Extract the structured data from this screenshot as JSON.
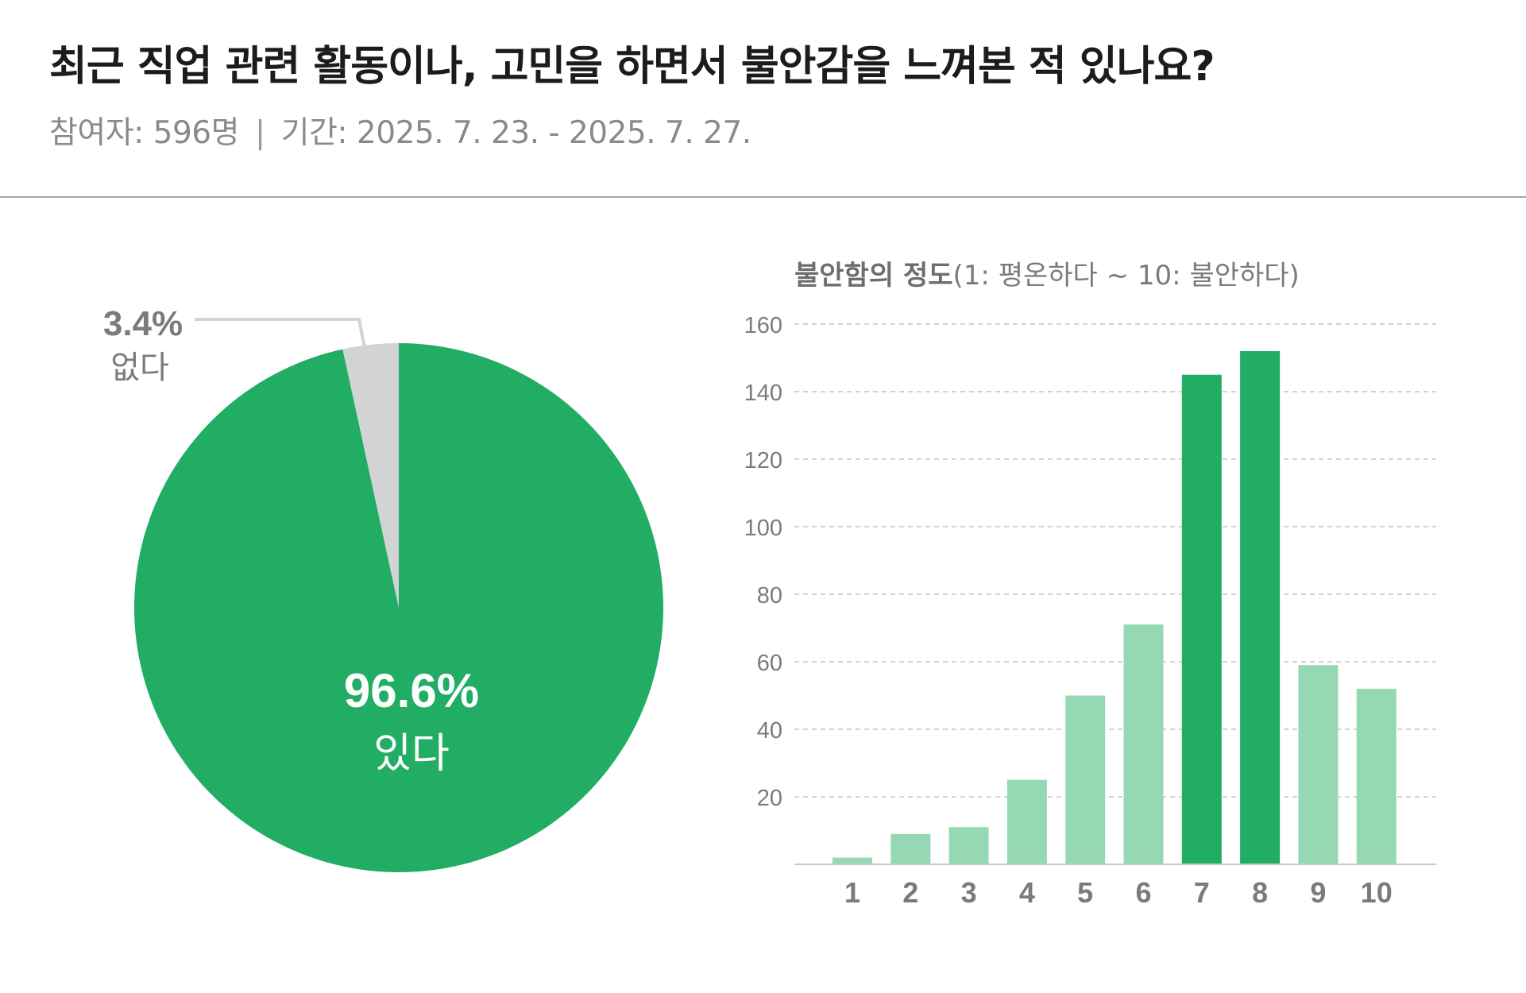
{
  "header": {
    "title": "최근 직업 관련 활동이나, 고민을 하면서 불안감을 느껴본 적 있나요?",
    "participants": "참여자: 596명",
    "separator": "|",
    "period": "기간: 2025. 7. 23. - 2025. 7. 27."
  },
  "colors": {
    "green": "#21ad63",
    "light_green": "#94d9b4",
    "gray": "#d2d3d5",
    "text_gray": "#7b7b7b"
  },
  "chart_data": [
    {
      "type": "pie",
      "slices": [
        {
          "label": "있다",
          "percent_label": "96.6%",
          "value": 96.6,
          "color": "#21ad63"
        },
        {
          "label": "없다",
          "percent_label": "3.4%",
          "value": 3.4,
          "color": "#d2d3d5"
        }
      ]
    },
    {
      "type": "bar",
      "title_bold": "불안함의 정도",
      "title_rest": "(1: 평온하다 ~ 10: 불안하다)",
      "categories": [
        "1",
        "2",
        "3",
        "4",
        "5",
        "6",
        "7",
        "8",
        "9",
        "10"
      ],
      "values": [
        2,
        9,
        11,
        25,
        50,
        71,
        145,
        152,
        59,
        52
      ],
      "highlight": [
        false,
        false,
        false,
        false,
        false,
        false,
        true,
        true,
        false,
        false
      ],
      "yticks": [
        "20",
        "40",
        "60",
        "80",
        "100",
        "120",
        "140",
        "160"
      ],
      "ylim": [
        0,
        160
      ],
      "grid": true
    }
  ]
}
